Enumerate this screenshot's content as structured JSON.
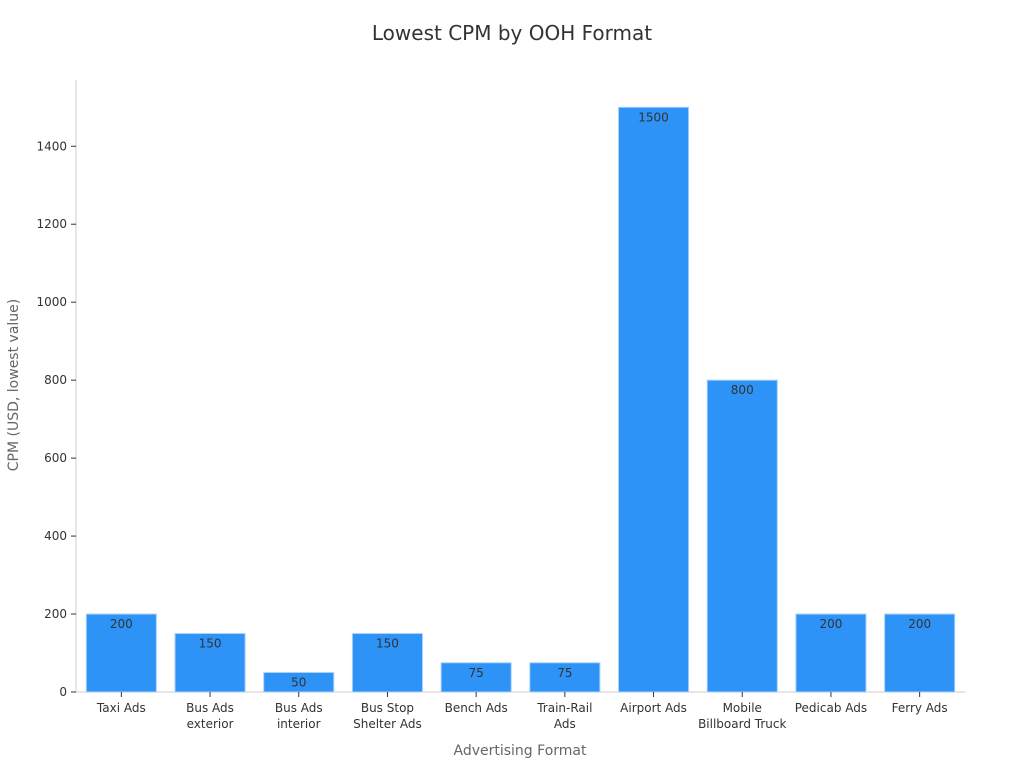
{
  "chart_data": {
    "type": "bar",
    "title": "Lowest CPM by OOH Format",
    "xlabel": "Advertising Format",
    "ylabel": "CPM (USD, lowest value)",
    "categories": [
      [
        "Taxi Ads"
      ],
      [
        "Bus Ads",
        "exterior"
      ],
      [
        "Bus Ads",
        "interior"
      ],
      [
        "Bus Stop",
        "Shelter Ads"
      ],
      [
        "Bench Ads"
      ],
      [
        "Train-Rail",
        "Ads"
      ],
      [
        "Airport Ads"
      ],
      [
        "Mobile",
        "Billboard Truck"
      ],
      [
        "Pedicab Ads"
      ],
      [
        "Ferry Ads"
      ]
    ],
    "values": [
      200,
      150,
      50,
      150,
      75,
      75,
      1500,
      800,
      200,
      200
    ],
    "ylim": [
      0,
      1570
    ],
    "yticks": [
      0,
      200,
      400,
      600,
      800,
      1000,
      1200,
      1400
    ],
    "grid": false,
    "bar_color": "#2e93f7",
    "bar_edge_color": "#a9d2fb"
  }
}
